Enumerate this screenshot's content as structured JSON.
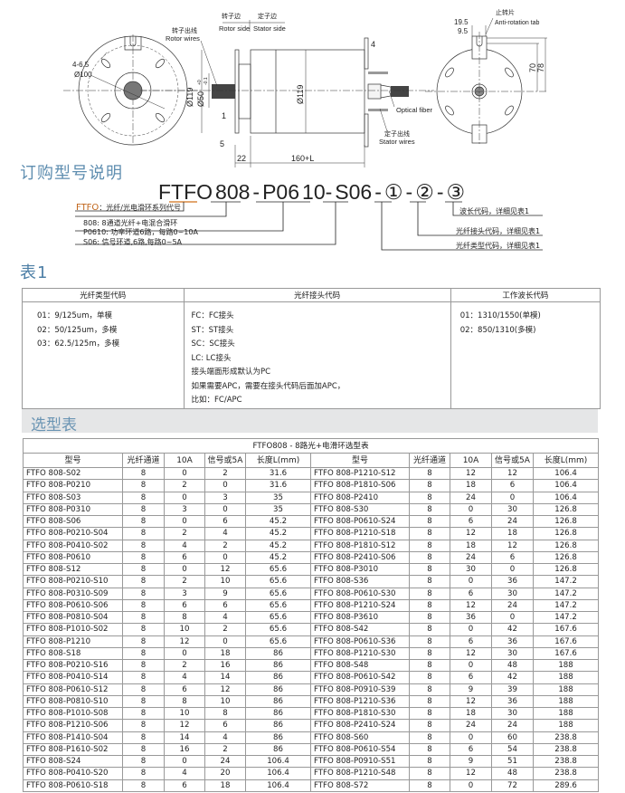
{
  "drawing": {
    "left_view": {
      "holes": "4-6.5",
      "pcd": "Ø100"
    },
    "side_view": {
      "rotor_side_cn": "转子边",
      "rotor_side": "Rotor side",
      "stator_side_cn": "定子边",
      "stator_side": "Stator  side",
      "rotor_wires_cn": "转子出线",
      "rotor_wires": "Rotor wires",
      "dia_outer": "Ø119",
      "dia_shaft": "Ø50",
      "tol_upper": "+0",
      "tol_lower": "-0.1",
      "dia_body": "Ø119",
      "dim_4": "4",
      "dim_1": "1",
      "dim_5": "5",
      "dim_22": "22",
      "dim_length": "160+L",
      "optical_fiber": "Optical fiber",
      "stator_wires_cn": "定子出线",
      "stator_wires": "Stator wires"
    },
    "right_view": {
      "tab_cn": "止转片",
      "tab": "Anti-rotation tab",
      "dim_19_5": "19.5",
      "dim_9_5": "9.5",
      "dim_70": "70",
      "dim_78": "78"
    }
  },
  "ordering": {
    "title": "订购型号说明",
    "code_parts": [
      "FTFO",
      "808",
      "-",
      "P06",
      "10-",
      "S06",
      "-",
      "①",
      "-",
      "②",
      "-",
      "③"
    ],
    "legend": [
      {
        "code": "FTFO",
        "text": "：光纤/光电滑环系列代号"
      },
      {
        "text": "808: 8通道光纤+电混合滑环"
      },
      {
        "text": "P0610: 功率环道6路，每路0~10A"
      },
      {
        "text": "S06: 信号环道,6路,每路0~5A"
      }
    ],
    "right_notes": [
      "波长代码，详细见表1",
      "光纤接头代码，详细见表1",
      "光纤类型代码，详细见表1"
    ]
  },
  "table1": {
    "title": "表1",
    "headers": [
      "光纤类型代码",
      "光纤接头代码",
      "工作波长代码"
    ],
    "col1": [
      "01：9/125um，单模",
      "02：50/125um，多模",
      "03：62.5/125m，多模"
    ],
    "col2": [
      "FC：FC接头",
      "ST：ST接头",
      "SC：SC接头",
      "LC:  LC接头",
      "接头端面形成默认为PC",
      "如果需要APC，需要在接头代码后面加APC，",
      "比如：FC/APC"
    ],
    "col3": [
      "01：1310/1550(单模)",
      "02：850/1310(多模)"
    ]
  },
  "selection": {
    "band_title": "选型表",
    "table_title": "FTFO808 - 8路光+电滑环选型表",
    "headers": [
      "型号",
      "光纤通道",
      "10A",
      "信号或5A",
      "长度L(mm)",
      "型号",
      "光纤通道",
      "10A",
      "信号或5A",
      "长度L(mm)"
    ],
    "rows": [
      [
        "FTFO 808-S02",
        "8",
        "0",
        "2",
        "31.6",
        "FTFO 808-P1210-S12",
        "8",
        "12",
        "12",
        "106.4"
      ],
      [
        "FTFO 808-P0210",
        "8",
        "2",
        "0",
        "31.6",
        "FTFO 808-P1810-S06",
        "8",
        "18",
        "6",
        "106.4"
      ],
      [
        "FTFO 808-S03",
        "8",
        "0",
        "3",
        "35",
        "FTFO 808-P2410",
        "8",
        "24",
        "0",
        "106.4"
      ],
      [
        "FTFO 808-P0310",
        "8",
        "3",
        "0",
        "35",
        "FTFO 808-S30",
        "8",
        "0",
        "30",
        "126.8"
      ],
      [
        "FTFO 808-S06",
        "8",
        "0",
        "6",
        "45.2",
        "FTFO 808-P0610-S24",
        "8",
        "6",
        "24",
        "126.8"
      ],
      [
        "FTFO 808-P0210-S04",
        "8",
        "2",
        "4",
        "45.2",
        "FTFO 808-P1210-S18",
        "8",
        "12",
        "18",
        "126.8"
      ],
      [
        "FTFO 808-P0410-S02",
        "8",
        "4",
        "2",
        "45.2",
        "FTFO 808-P1810-S12",
        "8",
        "18",
        "12",
        "126.8"
      ],
      [
        "FTFO 808-P0610",
        "8",
        "6",
        "0",
        "45.2",
        "FTFO 808-P2410-S06",
        "8",
        "24",
        "6",
        "126.8"
      ],
      [
        "FTFO 808-S12",
        "8",
        "0",
        "12",
        "65.6",
        "FTFO 808-P3010",
        "8",
        "30",
        "0",
        "126.8"
      ],
      [
        "FTFO 808-P0210-S10",
        "8",
        "2",
        "10",
        "65.6",
        "FTFO 808-S36",
        "8",
        "0",
        "36",
        "147.2"
      ],
      [
        "FTFO 808-P0310-S09",
        "8",
        "3",
        "9",
        "65.6",
        "FTFO 808-P0610-S30",
        "8",
        "6",
        "30",
        "147.2"
      ],
      [
        "FTFO 808-P0610-S06",
        "8",
        "6",
        "6",
        "65.6",
        "FTFO 808-P1210-S24",
        "8",
        "12",
        "24",
        "147.2"
      ],
      [
        "FTFO 808-P0810-S04",
        "8",
        "8",
        "4",
        "65.6",
        "FTFO 808-P3610",
        "8",
        "36",
        "0",
        "147.2"
      ],
      [
        "FTFO 808-P1010-S02",
        "8",
        "10",
        "2",
        "65.6",
        "FTFO 808-S42",
        "8",
        "0",
        "42",
        "167.6"
      ],
      [
        "FTFO 808-P1210",
        "8",
        "12",
        "0",
        "65.6",
        "FTFO 808-P0610-S36",
        "8",
        "6",
        "36",
        "167.6"
      ],
      [
        "FTFO 808-S18",
        "8",
        "0",
        "18",
        "86",
        "FTFO 808-P1210-S30",
        "8",
        "12",
        "30",
        "167.6"
      ],
      [
        "FTFO 808-P0210-S16",
        "8",
        "2",
        "16",
        "86",
        "FTFO 808-S48",
        "8",
        "0",
        "48",
        "188"
      ],
      [
        "FTFO 808-P0410-S14",
        "8",
        "4",
        "14",
        "86",
        "FTFO 808-P0610-S42",
        "8",
        "6",
        "42",
        "188"
      ],
      [
        "FTFO 808-P0610-S12",
        "8",
        "6",
        "12",
        "86",
        "FTFO 808-P0910-S39",
        "8",
        "9",
        "39",
        "188"
      ],
      [
        "FTFO 808-P0810-S10",
        "8",
        "8",
        "10",
        "86",
        "FTFO 808-P1210-S36",
        "8",
        "12",
        "36",
        "188"
      ],
      [
        "FTFO 808-P1010-S08",
        "8",
        "10",
        "8",
        "86",
        "FTFO 808-P1810-S30",
        "8",
        "18",
        "30",
        "188"
      ],
      [
        "FTFO 808-P1210-S06",
        "8",
        "12",
        "6",
        "86",
        "FTFO 808-P2410-S24",
        "8",
        "24",
        "24",
        "188"
      ],
      [
        "FTFO 808-P1410-S04",
        "8",
        "14",
        "4",
        "86",
        "FTFO 808-S60",
        "8",
        "0",
        "60",
        "238.8"
      ],
      [
        "FTFO 808-P1610-S02",
        "8",
        "16",
        "2",
        "86",
        "FTFO 808-P0610-S54",
        "8",
        "6",
        "54",
        "238.8"
      ],
      [
        "FTFO 808-S24",
        "8",
        "0",
        "24",
        "106.4",
        "FTFO 808-P0910-S51",
        "8",
        "9",
        "51",
        "238.8"
      ],
      [
        "FTFO 808-P0410-S20",
        "8",
        "4",
        "20",
        "106.4",
        "FTFO 808-P1210-S48",
        "8",
        "12",
        "48",
        "238.8"
      ],
      [
        "FTFO 808-P0610-S18",
        "8",
        "6",
        "18",
        "106.4",
        "FTFO 808-S72",
        "8",
        "0",
        "72",
        "289.6"
      ]
    ]
  }
}
